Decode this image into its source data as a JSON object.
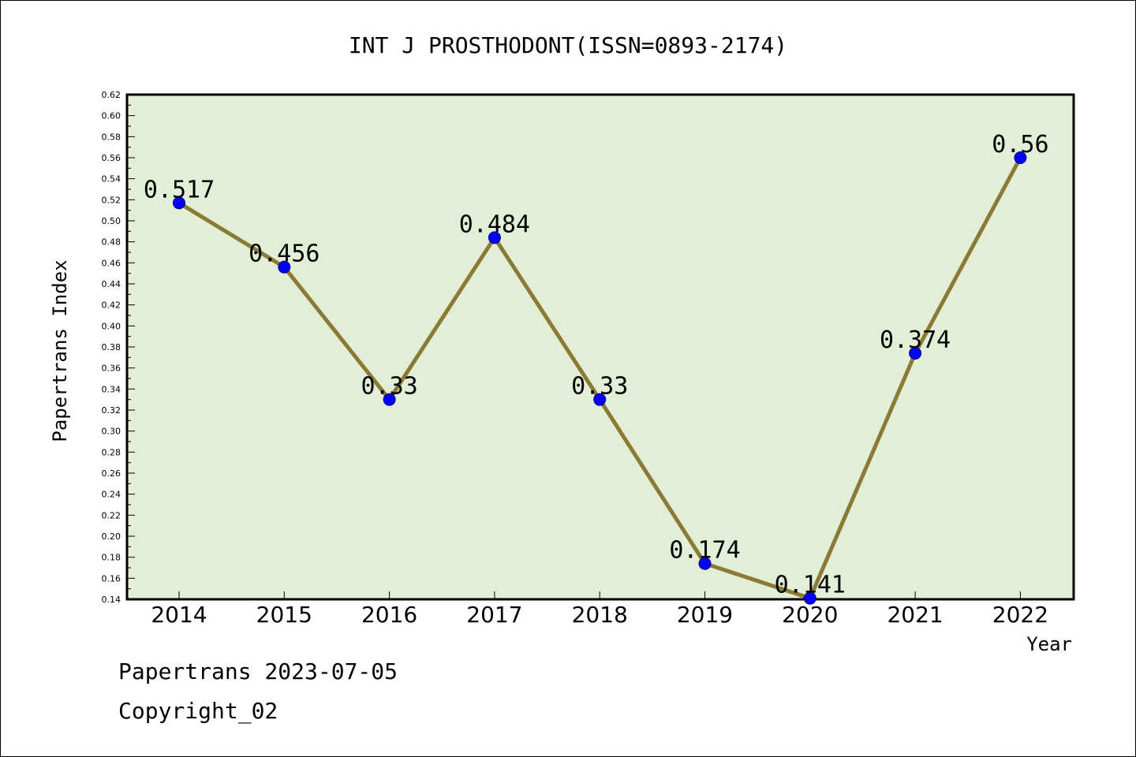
{
  "chart_data": {
    "type": "line",
    "title": "INT J PROSTHODONT(ISSN=0893-2174)",
    "xlabel": "Year",
    "ylabel": "Papertrans Index",
    "categories": [
      "2014",
      "2015",
      "2016",
      "2017",
      "2018",
      "2019",
      "2020",
      "2021",
      "2022"
    ],
    "values": [
      0.517,
      0.456,
      0.33,
      0.484,
      0.33,
      0.174,
      0.141,
      0.374,
      0.56
    ],
    "data_labels": [
      "0.517",
      "0.456",
      "0.33",
      "0.484",
      "0.33",
      "0.174",
      "0.141",
      "0.374",
      "0.56"
    ],
    "ylim": [
      0.14,
      0.62
    ],
    "yticks": [
      "0.14",
      "0.16",
      "0.18",
      "0.20",
      "0.22",
      "0.24",
      "0.26",
      "0.28",
      "0.30",
      "0.32",
      "0.34",
      "0.36",
      "0.38",
      "0.40",
      "0.42",
      "0.44",
      "0.46",
      "0.48",
      "0.50",
      "0.52",
      "0.54",
      "0.56",
      "0.58",
      "0.60",
      "0.62"
    ],
    "grid": false,
    "colors": {
      "plot_background": "#e2efd6",
      "line": "#8b7a35",
      "marker": "#0000ff"
    }
  },
  "footer": {
    "source": "Papertrans 2023-07-05",
    "copyright": "Copyright_02"
  }
}
